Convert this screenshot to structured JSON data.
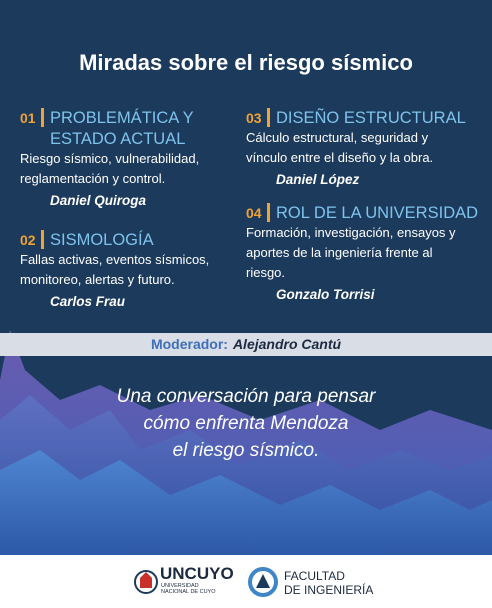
{
  "title": "Miradas sobre el riesgo sísmico",
  "sections": [
    {
      "number": "01",
      "heading": [
        "PROBLEMÁTICA Y",
        "ESTADO ACTUAL"
      ],
      "description": [
        "Riesgo sísmico, vulnerabilidad,",
        "reglamentación y control."
      ],
      "speaker": "Daniel Quiroga"
    },
    {
      "number": "02",
      "heading": [
        "SISMOLOGÍA"
      ],
      "description": [
        "Fallas activas, eventos sísmicos,",
        "monitoreo, alertas y futuro."
      ],
      "speaker": "Carlos Frau"
    },
    {
      "number": "03",
      "heading": [
        "DISEÑO ESTRUCTURAL"
      ],
      "description": [
        "Cálculo estructural, seguridad y",
        "vínculo entre el diseño y la obra."
      ],
      "speaker": "Daniel López"
    },
    {
      "number": "04",
      "heading": [
        "ROL DE LA UNIVERSIDAD"
      ],
      "description": [
        "Formación, investigación, ensayos y",
        "aportes de la ingeniería frente al",
        "riesgo."
      ],
      "speaker": "Gonzalo Torrisi"
    }
  ],
  "moderator": {
    "label": "Moderador:",
    "name": "Alejandro Cantú"
  },
  "quote": [
    "Una conversación para pensar",
    "cómo enfrenta Mendoza",
    "el riesgo sísmico."
  ],
  "footer": {
    "university": {
      "name": "UNCUYO",
      "lines": [
        "UNIVERSIDAD",
        "NACIONAL DE CUYO"
      ]
    },
    "faculty": {
      "lines": [
        "FACULTAD",
        "DE INGENIERÍA"
      ]
    }
  }
}
